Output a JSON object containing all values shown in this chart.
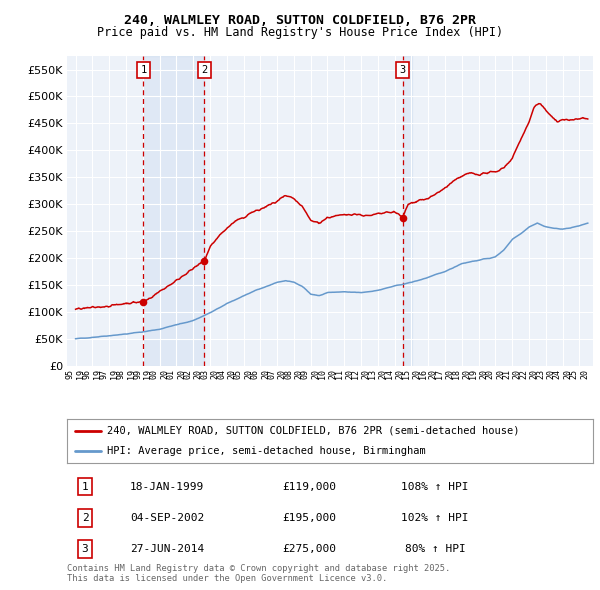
{
  "title_line1": "240, WALMLEY ROAD, SUTTON COLDFIELD, B76 2PR",
  "title_line2": "Price paid vs. HM Land Registry's House Price Index (HPI)",
  "legend_line1": "240, WALMLEY ROAD, SUTTON COLDFIELD, B76 2PR (semi-detached house)",
  "legend_line2": "HPI: Average price, semi-detached house, Birmingham",
  "footnote": "Contains HM Land Registry data © Crown copyright and database right 2025.\nThis data is licensed under the Open Government Licence v3.0.",
  "purchases": [
    {
      "label": "1",
      "date_x": 1999.04,
      "price": 119000,
      "date_str": "18-JAN-1999",
      "pct": "108%"
    },
    {
      "label": "2",
      "date_x": 2002.67,
      "price": 195000,
      "date_str": "04-SEP-2002",
      "pct": "102%"
    },
    {
      "label": "3",
      "date_x": 2014.48,
      "price": 275000,
      "date_str": "27-JUN-2014",
      "pct": "80%"
    }
  ],
  "red_color": "#cc0000",
  "blue_color": "#6699cc",
  "plot_bg": "#edf2f9",
  "grid_color": "#ffffff",
  "shade_color": "#c5d8ee",
  "ylim": [
    0,
    575000
  ],
  "xlim_start": 1994.5,
  "xlim_end": 2025.8
}
